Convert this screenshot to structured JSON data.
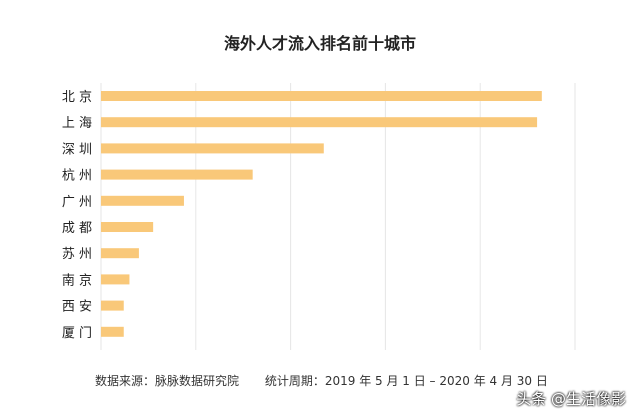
{
  "chart_data": {
    "type": "bar",
    "orientation": "horizontal",
    "title": "海外人才流入排名前十城市",
    "categories": [
      "北京",
      "上海",
      "深圳",
      "杭州",
      "广州",
      "成都",
      "苏州",
      "南京",
      "西安",
      "厦门"
    ],
    "category_labels": [
      "北 京",
      "上 海",
      "深 圳",
      "杭 州",
      "广 州",
      "成 都",
      "苏 州",
      "南 京",
      "西 安",
      "厦 门"
    ],
    "values": [
      93,
      92,
      47,
      32,
      17.5,
      11,
      8,
      6,
      4.8,
      4.8
    ],
    "xlim": [
      0,
      100
    ],
    "grid": true,
    "bar_color": "#F9C879",
    "grid_color": "#E6E6E6"
  },
  "footer": {
    "source": "数据来源：脉脉数据研究院",
    "period": "统计周期：2019 年 5 月 1 日 – 2020 年 4 月 30 日"
  },
  "watermark": "头条 @生活像影"
}
